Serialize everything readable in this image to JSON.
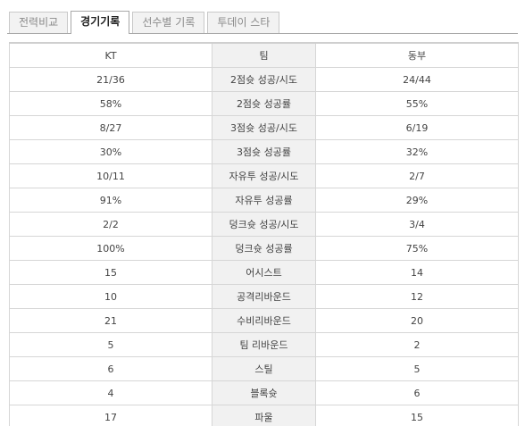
{
  "tabs": [
    {
      "label": "전력비교",
      "active": false
    },
    {
      "label": "경기기록",
      "active": true
    },
    {
      "label": "선수별 기록",
      "active": false
    },
    {
      "label": "투데이 스타",
      "active": false
    }
  ],
  "table": {
    "headers": {
      "left": "KT",
      "middle": "팀",
      "right": "동부"
    },
    "rows": [
      {
        "left": "21/36",
        "label": "2점슛 성공/시도",
        "right": "24/44"
      },
      {
        "left": "58%",
        "label": "2점슛 성공률",
        "right": "55%"
      },
      {
        "left": "8/27",
        "label": "3점슛 성공/시도",
        "right": "6/19"
      },
      {
        "left": "30%",
        "label": "3점슛 성공률",
        "right": "32%"
      },
      {
        "left": "10/11",
        "label": "자유투 성공/시도",
        "right": "2/7"
      },
      {
        "left": "91%",
        "label": "자유투 성공률",
        "right": "29%"
      },
      {
        "left": "2/2",
        "label": "덩크슛 성공/시도",
        "right": "3/4"
      },
      {
        "left": "100%",
        "label": "덩크슛 성공률",
        "right": "75%"
      },
      {
        "left": "15",
        "label": "어시스트",
        "right": "14"
      },
      {
        "left": "10",
        "label": "공격리바운드",
        "right": "12"
      },
      {
        "left": "21",
        "label": "수비리바운드",
        "right": "20"
      },
      {
        "left": "5",
        "label": "팀 리바운드",
        "right": "2"
      },
      {
        "left": "6",
        "label": "스틸",
        "right": "5"
      },
      {
        "left": "4",
        "label": "블록슛",
        "right": "6"
      },
      {
        "left": "17",
        "label": "파울",
        "right": "15"
      }
    ]
  }
}
